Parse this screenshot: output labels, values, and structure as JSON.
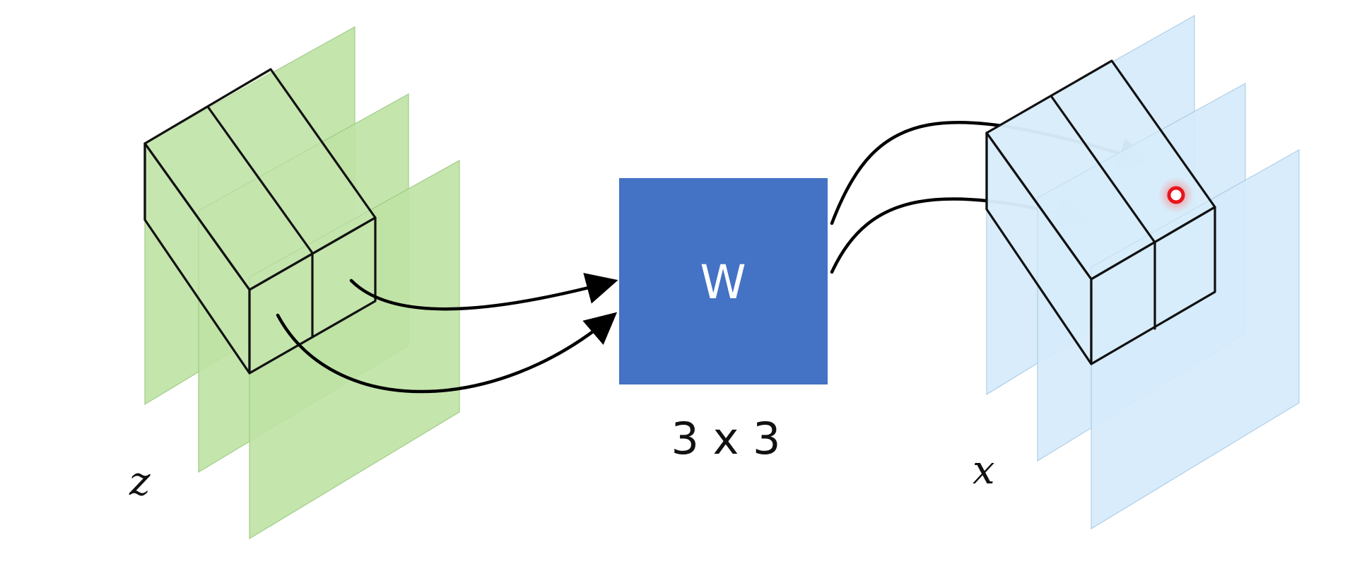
{
  "input": {
    "symbol": "z",
    "color": "#bfe3a5"
  },
  "weight": {
    "label": "W",
    "size_label": "3 x 3",
    "color": "#4472c4"
  },
  "output": {
    "symbol": "x",
    "color": "#d6ebfb"
  },
  "marker": {
    "color": "#e8141b"
  }
}
